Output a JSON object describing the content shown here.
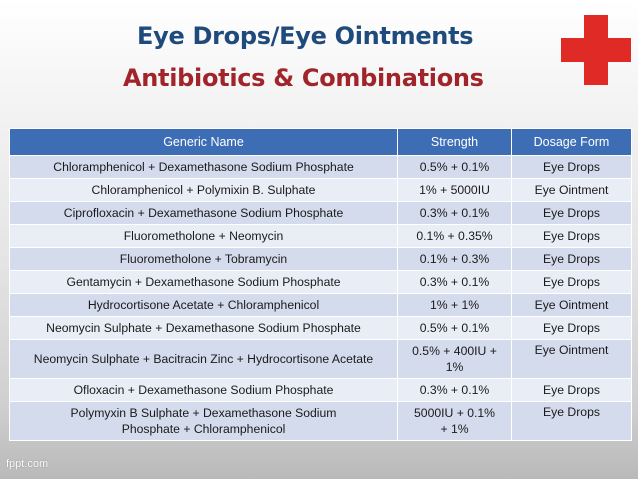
{
  "title": {
    "line1": "Eye Drops/Eye Ointments",
    "line2": "Antibiotics & Combinations"
  },
  "icons": {
    "cross": "red-cross-icon"
  },
  "colors": {
    "header_bg": "#3d6db5",
    "title1": "#1f4a7c",
    "title2": "#a0242a",
    "cross": "#e02a26"
  },
  "table": {
    "headers": [
      "Generic Name",
      "Strength",
      "Dosage Form"
    ],
    "rows": [
      [
        "Chloramphenicol + Dexamethasone Sodium Phosphate",
        "0.5% + 0.1%",
        "Eye Drops"
      ],
      [
        "Chloramphenicol + Polymixin B. Sulphate",
        "1% + 5000IU",
        "Eye Ointment"
      ],
      [
        "Ciprofloxacin + Dexamethasone Sodium Phosphate",
        "0.3% + 0.1%",
        "Eye Drops"
      ],
      [
        "Fluorometholone + Neomycin",
        "0.1% + 0.35%",
        "Eye Drops"
      ],
      [
        "Fluorometholone + Tobramycin",
        "0.1% + 0.3%",
        "Eye Drops"
      ],
      [
        "Gentamycin + Dexamethasone Sodium Phosphate",
        "0.3% + 0.1%",
        "Eye Drops"
      ],
      [
        "Hydrocortisone Acetate + Chloramphenicol",
        "1% + 1%",
        "Eye Ointment"
      ],
      [
        "Neomycin Sulphate + Dexamethasone Sodium Phosphate",
        "0.5% + 0.1%",
        "Eye Drops"
      ],
      [
        "Neomycin Sulphate + Bacitracin Zinc + Hydrocortisone Acetate",
        "0.5% + 400IU + 1%",
        "Eye Ointment"
      ],
      [
        "Ofloxacin + Dexamethasone Sodium Phosphate",
        "0.3% + 0.1%",
        "Eye Drops"
      ],
      [
        "Polymyxin B Sulphate + Dexamethasone Sodium Phosphate + Chloramphenicol",
        "5000IU + 0.1% + 1%",
        "Eye Drops"
      ]
    ]
  },
  "footer": "fppt.com"
}
